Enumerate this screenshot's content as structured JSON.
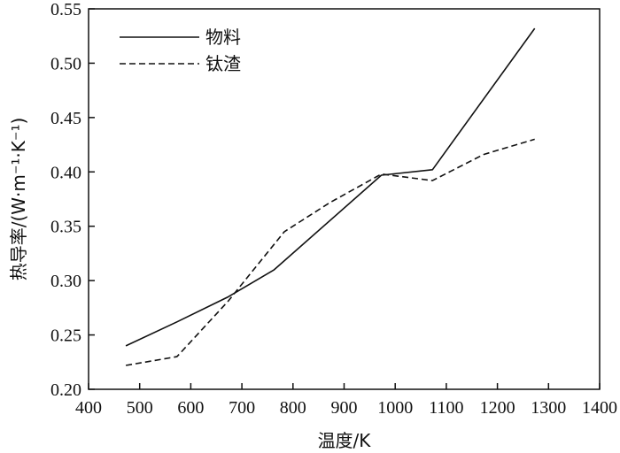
{
  "chart_data": {
    "type": "line",
    "xlabel": "温度/K",
    "ylabel": "热导率/(W·m⁻¹·K⁻¹)",
    "xlim": [
      400,
      1400
    ],
    "ylim": [
      0.2,
      0.55
    ],
    "xticks": [
      "400",
      "500",
      "600",
      "700",
      "800",
      "900",
      "1000",
      "1100",
      "1200",
      "1300",
      "1400"
    ],
    "yticks": [
      "0.20",
      "0.25",
      "0.30",
      "0.35",
      "0.40",
      "0.45",
      "0.50",
      "0.55"
    ],
    "grid": false,
    "legend_position": "top-left",
    "series": [
      {
        "name": "物料",
        "style": "solid",
        "x": [
          473,
          573,
          673,
          763,
          973,
          1073,
          1273
        ],
        "y": [
          0.24,
          0.262,
          0.285,
          0.31,
          0.397,
          0.402,
          0.532
        ]
      },
      {
        "name": "钛渣",
        "style": "dashed",
        "x": [
          473,
          573,
          673,
          783,
          873,
          973,
          1073,
          1173,
          1273
        ],
        "y": [
          0.222,
          0.23,
          0.281,
          0.345,
          0.372,
          0.398,
          0.392,
          0.416,
          0.43
        ]
      }
    ]
  }
}
